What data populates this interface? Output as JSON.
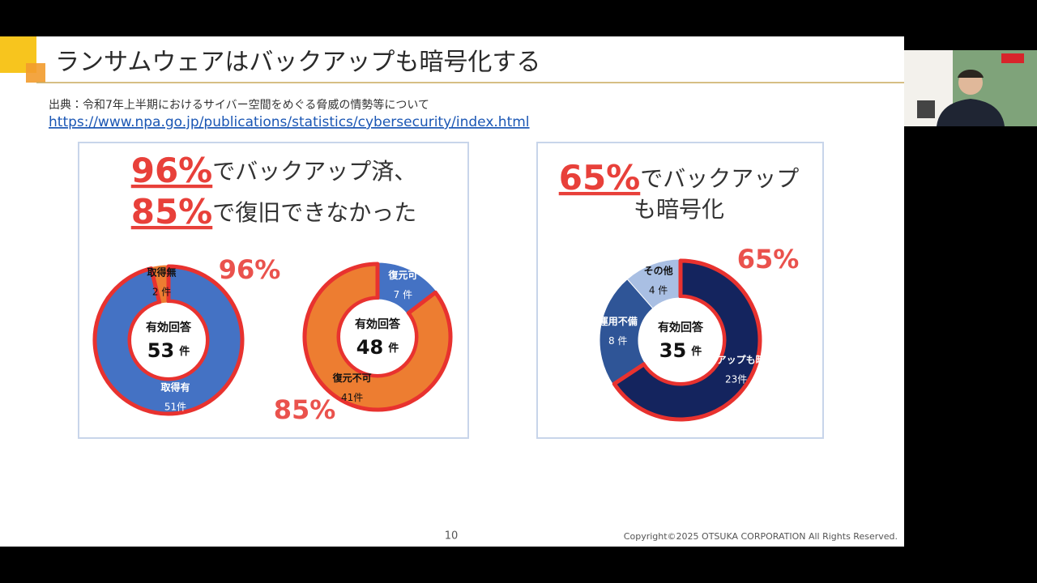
{
  "slide": {
    "title": "ランサムウェアはバックアップも暗号化する",
    "source": "出典：令和7年上半期におけるサイバー空間をめぐる脅威の情勢等について",
    "link": "https://www.npa.go.jp/publications/statistics/cybersecurity/index.html",
    "panel1_heading": [
      [
        "96%",
        "でバックアップ済、"
      ],
      [
        "85%",
        "で復旧できなかった"
      ]
    ],
    "panel2_heading": [
      [
        "65%",
        "でバックアップ"
      ],
      [
        "",
        "も暗号化"
      ]
    ],
    "page_number": "10",
    "copyright": "Copyright©2025 OTSUKA CORPORATION All Rights Reserved."
  },
  "chart_data": [
    {
      "type": "donut",
      "categories": [
        "取得有",
        "取得無"
      ],
      "values": [
        51,
        2
      ],
      "value_labels": [
        "51件",
        "2 件"
      ],
      "colors": [
        "#4472c4",
        "#ed7d31"
      ],
      "outline_colors": [
        "#e8322f",
        null
      ],
      "center_label": "有効回答",
      "total": 53,
      "total_unit": "件",
      "annotation": "96%"
    },
    {
      "type": "donut",
      "categories": [
        "復元可",
        "復元不可"
      ],
      "values": [
        7,
        41
      ],
      "value_labels": [
        "7 件",
        "41件"
      ],
      "colors": [
        "#4472c4",
        "#ed7d31"
      ],
      "outline_colors": [
        null,
        "#e8322f"
      ],
      "center_label": "有効回答",
      "total": 48,
      "total_unit": "件",
      "annotation": "85%"
    },
    {
      "type": "donut",
      "categories": [
        "バックアップも暗号化",
        "運用不備",
        "その他"
      ],
      "values": [
        23,
        8,
        4
      ],
      "value_labels": [
        "23件",
        "8 件",
        "4 件"
      ],
      "colors": [
        "#14245e",
        "#2f5597",
        "#a9bfe3"
      ],
      "outline_colors": [
        "#e8322f",
        null,
        null
      ],
      "center_label": "有効回答",
      "total": 35,
      "total_unit": "件",
      "annotation": "65%"
    }
  ]
}
